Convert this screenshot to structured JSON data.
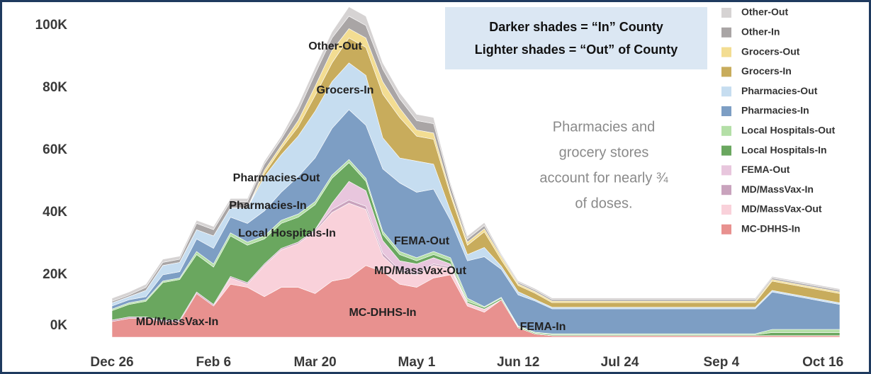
{
  "chart_data": {
    "type": "stacked_area",
    "categories": [
      "Dec 26",
      null,
      null,
      null,
      null,
      null,
      "Feb 6",
      null,
      null,
      null,
      null,
      null,
      "Mar 20",
      null,
      null,
      null,
      null,
      null,
      "May 1",
      null,
      null,
      null,
      null,
      null,
      "Jun 12",
      null,
      null,
      null,
      null,
      null,
      "Jul 24",
      null,
      null,
      null,
      null,
      null,
      "Sep 4",
      null,
      null,
      null,
      null,
      null,
      "Oct 16",
      null
    ],
    "ylim": [
      0,
      106
    ],
    "yticks": [
      {
        "value": 0,
        "label": "0K"
      },
      {
        "value": 20,
        "label": "20K"
      },
      {
        "value": 40,
        "label": "40K"
      },
      {
        "value": 60,
        "label": "60K"
      },
      {
        "value": 80,
        "label": "80K"
      },
      {
        "value": 100,
        "label": "100K"
      }
    ],
    "grid": false,
    "legend": "right",
    "series": [
      {
        "name": "MC-DHHS-In",
        "color": "#e8918f",
        "values": [
          5,
          6,
          6,
          5,
          5,
          14,
          10,
          17,
          16,
          13,
          16,
          16,
          14,
          18,
          19,
          23,
          21,
          17,
          16,
          19,
          20,
          10,
          8,
          12,
          3,
          1,
          0.5,
          0.5,
          0.5,
          0.5,
          0.5,
          0.5,
          0.5,
          0.5,
          0.5,
          0.5,
          0.5,
          0.5,
          0.5,
          0.5,
          0.5,
          0.5,
          0.5,
          0.5
        ]
      },
      {
        "name": "MD/MassVax-Out",
        "color": "#f9d1da",
        "values": [
          0,
          0,
          0,
          0,
          0,
          0,
          0,
          2,
          1,
          10,
          12,
          14,
          20,
          22,
          24,
          18,
          5,
          4,
          4,
          4,
          2,
          1,
          1,
          0,
          0,
          0,
          0,
          0,
          0,
          0,
          0,
          0,
          0,
          0,
          0,
          0,
          0,
          0,
          0,
          0,
          0,
          0,
          0,
          0
        ]
      },
      {
        "name": "MD/MassVax-In",
        "color": "#c9a3bd",
        "values": [
          0.5,
          0.5,
          0.5,
          0.5,
          0.5,
          0.5,
          0.5,
          0.5,
          0.5,
          0.5,
          0.5,
          0.5,
          0.5,
          1,
          1,
          1,
          1,
          0.5,
          0.5,
          0.5,
          0.5,
          0,
          0,
          0,
          0,
          0,
          0,
          0,
          0,
          0,
          0,
          0,
          0,
          0,
          0,
          0,
          0,
          0,
          0,
          0,
          0,
          0,
          0,
          0
        ]
      },
      {
        "name": "FEMA-Out",
        "color": "#e8c6dd",
        "values": [
          0,
          0,
          0,
          0,
          0,
          0,
          0,
          0,
          0,
          0,
          0,
          0,
          0,
          2,
          6,
          5,
          4,
          3,
          3,
          2,
          1,
          0,
          0,
          0,
          0,
          0,
          0,
          0,
          0,
          0,
          0,
          0,
          0,
          0,
          0,
          0,
          0,
          0,
          0,
          0,
          0,
          0,
          0,
          0
        ]
      },
      {
        "name": "Local Hospitals-In",
        "color": "#6aa75f",
        "values": [
          3,
          4,
          5,
          12,
          13,
          12,
          12,
          13,
          12,
          8,
          8,
          8,
          8,
          8,
          6,
          3,
          2,
          2,
          1,
          1,
          1,
          0.5,
          0.5,
          0.5,
          0.3,
          0.3,
          0.3,
          0.3,
          0.3,
          0.3,
          0.3,
          0.3,
          0.3,
          0.3,
          0.3,
          0.3,
          0.3,
          0.3,
          0.3,
          1,
          1,
          1,
          1,
          1
        ]
      },
      {
        "name": "Local Hospitals-Out",
        "color": "#b4dfa7",
        "values": [
          0.5,
          0.5,
          0.5,
          0.5,
          0.5,
          1,
          1,
          1,
          1,
          1,
          1,
          1,
          1,
          1,
          1,
          1,
          1,
          1,
          1,
          1,
          1,
          1,
          0.3,
          0.3,
          0.3,
          0.3,
          0.3,
          0.3,
          0.3,
          0.3,
          0.3,
          0.3,
          0.3,
          0.3,
          0.3,
          0.3,
          0.3,
          0.3,
          0.3,
          1,
          1,
          1,
          1,
          1
        ]
      },
      {
        "name": "Pharmacies-In",
        "color": "#7d9ec4",
        "values": [
          1,
          1,
          1,
          2,
          2,
          4,
          5,
          5,
          6,
          8,
          9,
          12,
          14,
          15,
          16,
          17,
          20,
          22,
          21,
          20,
          12,
          12,
          16,
          9,
          10,
          10,
          8,
          8,
          8,
          8,
          8,
          8,
          8,
          8,
          8,
          8,
          8,
          8,
          8,
          12,
          11,
          10,
          9,
          8
        ]
      },
      {
        "name": "Pharmacies-Out",
        "color": "#c6ddf0",
        "values": [
          1,
          1,
          2,
          3,
          3,
          3,
          4,
          3,
          5,
          11,
          12,
          13,
          15,
          15,
          15,
          16,
          10,
          8,
          10,
          8,
          3,
          2,
          3,
          1,
          1,
          0.5,
          0.5,
          0.5,
          0.5,
          0.5,
          0.5,
          0.5,
          0.5,
          0.5,
          0.5,
          0.5,
          0.5,
          0.5,
          0.5,
          0.5,
          0.5,
          0.5,
          0.5,
          0.5
        ]
      },
      {
        "name": "Grocers-In",
        "color": "#c8ac5c",
        "values": [
          0,
          0,
          0,
          0,
          0,
          0,
          0,
          0,
          0,
          1,
          2,
          3,
          5,
          6,
          8,
          9,
          14,
          13,
          8,
          8,
          5,
          3,
          5,
          2,
          2,
          2,
          1.5,
          1.5,
          1.5,
          1.5,
          1.5,
          1.5,
          1.5,
          1.5,
          1.5,
          1.5,
          1.5,
          1.5,
          1.5,
          3,
          3,
          3,
          3,
          3
        ]
      },
      {
        "name": "Grocers-Out",
        "color": "#f3dd92",
        "values": [
          0,
          0,
          0,
          0,
          0,
          0,
          0,
          0,
          0,
          1,
          1,
          2,
          3,
          4,
          3,
          3,
          4,
          3,
          2,
          2,
          1,
          1,
          1,
          1,
          0.5,
          0.5,
          0.5,
          0.5,
          0.5,
          0.5,
          0.5,
          0.5,
          0.5,
          0.5,
          0.5,
          0.5,
          0.5,
          0.5,
          0.5,
          0.5,
          0.5,
          0.5,
          0.5,
          0.5
        ]
      },
      {
        "name": "Other-In",
        "color": "#a9a5a5",
        "values": [
          0.5,
          0.5,
          1,
          1,
          1,
          2,
          2,
          2,
          2,
          2,
          2,
          3,
          4,
          4,
          4,
          4,
          4,
          3,
          3,
          3,
          2,
          1,
          1,
          0.5,
          0.5,
          0.5,
          0.5,
          0.5,
          0.5,
          0.5,
          0.5,
          0.5,
          0.5,
          0.5,
          0.5,
          0.5,
          0.5,
          0.5,
          0.5,
          0.5,
          0.5,
          0.5,
          0.5,
          0.5
        ]
      },
      {
        "name": "Other-Out",
        "color": "#d6d3d3",
        "values": [
          1,
          1,
          1,
          1,
          1,
          1,
          1,
          1,
          1,
          1,
          1,
          2,
          2,
          2,
          3,
          3,
          2,
          2,
          2,
          2,
          1,
          1,
          1,
          0.5,
          0.5,
          0.5,
          0.5,
          0.5,
          0.5,
          0.5,
          0.5,
          0.5,
          0.5,
          0.5,
          0.5,
          0.5,
          0.5,
          0.5,
          0.5,
          0.5,
          0.5,
          0.5,
          0.5,
          0.5
        ]
      }
    ],
    "annotations": [
      "Other-Out",
      "Grocers-In",
      "Pharmacies-Out",
      "Pharmacies-In",
      "Local Hospitals-In",
      "FEMA-Out",
      "MD/MassVax-Out",
      "MC-DHHS-In",
      "MD/MassVax-In",
      "FEMA-In"
    ],
    "callout": [
      "Darker shades = “In” County",
      "Lighter shades = “Out” of County"
    ],
    "note": [
      "Pharmacies and",
      "grocery stores",
      "account for nearly ¾",
      "of doses."
    ]
  }
}
